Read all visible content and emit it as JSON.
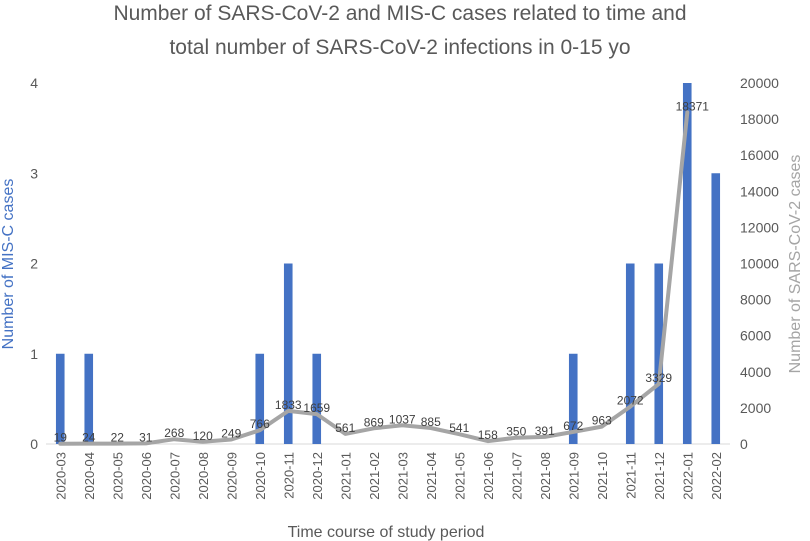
{
  "chart_data": {
    "type": "bar+line",
    "title_lines": [
      "Number of SARS-CoV-2 and MIS-C cases related to time and",
      "total number of SARS-CoV-2 infections in 0-15 yo"
    ],
    "xlabel": "Time course of study period",
    "ylabel_left": "Number of MIS-C cases",
    "ylabel_right": "Number of SARS-CoV-2 cases",
    "categories": [
      "2020-03",
      "2020-04",
      "2020-05",
      "2020-06",
      "2020-07",
      "2020-08",
      "2020-09",
      "2020-10",
      "2020-11",
      "2020-12",
      "2021-01",
      "2021-02",
      "2021-03",
      "2021-04",
      "2021-05",
      "2021-06",
      "2021-07",
      "2021-08",
      "2021-09",
      "2021-10",
      "2021-11",
      "2021-12",
      "2022-01",
      "2022-02"
    ],
    "series": [
      {
        "name": "MIS-C cases",
        "axis": "left",
        "type": "bar",
        "color": "#4472C4",
        "values": [
          1,
          1,
          0,
          0,
          0,
          0,
          0,
          1,
          2,
          1,
          0,
          0,
          0,
          0,
          0,
          0,
          0,
          0,
          1,
          0,
          2,
          2,
          4,
          3
        ]
      },
      {
        "name": "SARS-CoV-2 cases",
        "axis": "right",
        "type": "line",
        "color": "#A5A5A5",
        "values": [
          19,
          24,
          22,
          31,
          268,
          120,
          249,
          766,
          1833,
          1659,
          561,
          869,
          1037,
          885,
          541,
          158,
          350,
          391,
          672,
          963,
          2072,
          3329,
          18371,
          null
        ],
        "labels": [
          "19",
          "24",
          "22",
          "31",
          "268",
          "120",
          "249",
          "766",
          "1833",
          "1659",
          "561",
          "869",
          "1037",
          "885",
          "541",
          "158",
          "350",
          "391",
          "672",
          "963",
          "2072",
          "3329",
          "18371",
          ""
        ]
      }
    ],
    "y_left": {
      "min": 0,
      "max": 4,
      "ticks": [
        "0",
        "1",
        "2",
        "3",
        "4"
      ]
    },
    "y_right": {
      "min": 0,
      "max": 20000,
      "ticks": [
        "0",
        "2000",
        "4000",
        "6000",
        "8000",
        "10000",
        "12000",
        "14000",
        "16000",
        "18000",
        "20000"
      ]
    },
    "colors": {
      "title": "#595959",
      "left_axis_title": "#4472C4",
      "right_axis_title": "#A5A5A5",
      "text": "#595959",
      "axis_line": "#D9D9D9"
    }
  }
}
